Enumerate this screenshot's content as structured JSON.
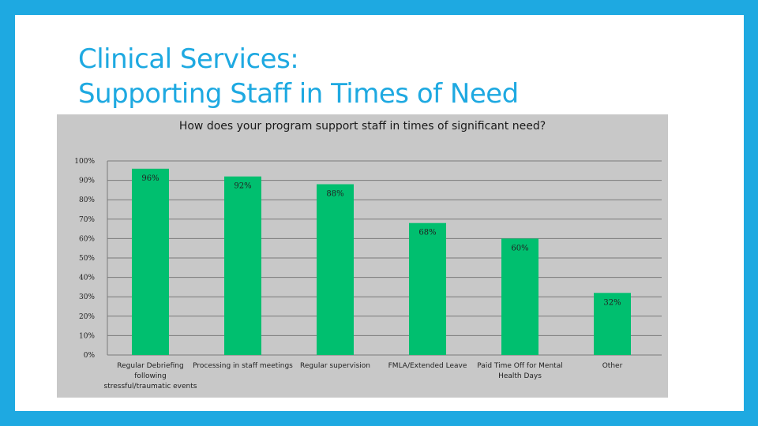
{
  "slide": {
    "title_line1": "Clinical Services:",
    "title_line2": "Supporting Staff in Times of Need"
  },
  "colors": {
    "frame": "#1EA9E1",
    "title": "#1EA9E1",
    "bar": "#00BF6F",
    "plot_bg": "#C8C8C8"
  },
  "chart_data": {
    "type": "bar",
    "title": "How does your program support staff in times of significant need?",
    "categories": [
      "Regular Debriefing following stressful/traumatic events",
      "Processing in staff meetings",
      "Regular supervision",
      "FMLA/Extended Leave",
      "Paid Time Off for Mental Health Days",
      "Other"
    ],
    "values": [
      96,
      92,
      88,
      68,
      60,
      32
    ],
    "data_labels": [
      "96%",
      "92%",
      "88%",
      "68%",
      "60%",
      "32%"
    ],
    "ylim": [
      0,
      100
    ],
    "yticks": [
      "0%",
      "10%",
      "20%",
      "30%",
      "40%",
      "50%",
      "60%",
      "70%",
      "80%",
      "90%",
      "100%"
    ],
    "grid": true,
    "legend": "none",
    "xlabel": "",
    "ylabel": ""
  }
}
